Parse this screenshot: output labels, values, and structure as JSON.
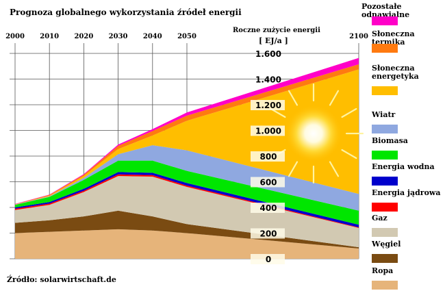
{
  "chart_data": {
    "type": "area",
    "title": "Prognoza globalnego wykorzystania źródeł energii",
    "source": "Źródło: solarwirtschaft.de",
    "ylabel": "Roczne zużycie energii",
    "yunit": "[ EJ/a ]",
    "ylim": [
      0,
      1600
    ],
    "x": [
      2000,
      2010,
      2020,
      2030,
      2040,
      2050,
      2100
    ],
    "x_tick_labels": [
      "2000",
      "2010",
      "2020",
      "2030",
      "2040",
      "2050",
      "2100"
    ],
    "y_ticks": [
      0,
      200,
      400,
      600,
      800,
      1000,
      1200,
      1400,
      1600
    ],
    "y_tick_labels": [
      "0",
      "200",
      "400",
      "600",
      "800",
      "1.000",
      "1.200",
      "1.400",
      "1.600"
    ],
    "grid": true,
    "stacked": true,
    "series": [
      {
        "name": "Ropa",
        "color": "#e6b47a",
        "values": [
          200,
          210,
          220,
          230,
          220,
          200,
          80
        ]
      },
      {
        "name": "Węgiel",
        "color": "#7a4b12",
        "values": [
          80,
          90,
          110,
          145,
          110,
          70,
          10
        ]
      },
      {
        "name": "Gaz",
        "color": "#d2c9b2",
        "values": [
          100,
          120,
          190,
          270,
          310,
          290,
          150
        ]
      },
      {
        "name": "Energia jądrowa",
        "color": "#ff0000",
        "values": [
          10,
          10,
          10,
          12,
          12,
          10,
          5
        ]
      },
      {
        "name": "Energia wodna",
        "color": "#0000cc",
        "values": [
          10,
          12,
          15,
          18,
          18,
          20,
          20
        ]
      },
      {
        "name": "Biomasa",
        "color": "#00e600",
        "values": [
          20,
          40,
          70,
          90,
          95,
          95,
          110
        ]
      },
      {
        "name": "Wiatr",
        "color": "#8fa8e0",
        "values": [
          2,
          5,
          15,
          50,
          120,
          160,
          130
        ]
      },
      {
        "name": "Słoneczna energetyka",
        "color": "#ffbe00",
        "values": [
          1,
          5,
          15,
          40,
          75,
          230,
          970
        ]
      },
      {
        "name": "Słoneczna termika",
        "color": "#ff7a10",
        "values": [
          2,
          5,
          10,
          25,
          35,
          40,
          40
        ]
      },
      {
        "name": "Pozostałe odnawialne",
        "color": "#ff00c8",
        "values": [
          2,
          3,
          5,
          10,
          15,
          25,
          50
        ]
      }
    ],
    "legend": "right",
    "legend_order": [
      "Pozostałe odnawialne",
      "Słoneczna termika",
      "Słoneczna energetyka",
      "Wiatr",
      "Biomasa",
      "Energia wodna",
      "Energia jądrowa",
      "Gaz",
      "Węgiel",
      "Ropa"
    ],
    "legend_labels": {
      "Pozostałe odnawialne": [
        "Pozostałe odnawialne"
      ],
      "Słoneczna termika": [
        "Słoneczna termika"
      ],
      "Słoneczna energetyka": [
        "Słoneczna",
        "energetyka"
      ],
      "Wiatr": [
        "Wiatr"
      ],
      "Biomasa": [
        "Biomasa"
      ],
      "Energia wodna": [
        "Energia wodna"
      ],
      "Energia jądrowa": [
        "Energia jądrowa"
      ],
      "Gaz": [
        "Gaz"
      ],
      "Węgiel": [
        "Węgiel"
      ],
      "Ropa": [
        "Ropa"
      ]
    },
    "decoration": "sun-icon"
  }
}
